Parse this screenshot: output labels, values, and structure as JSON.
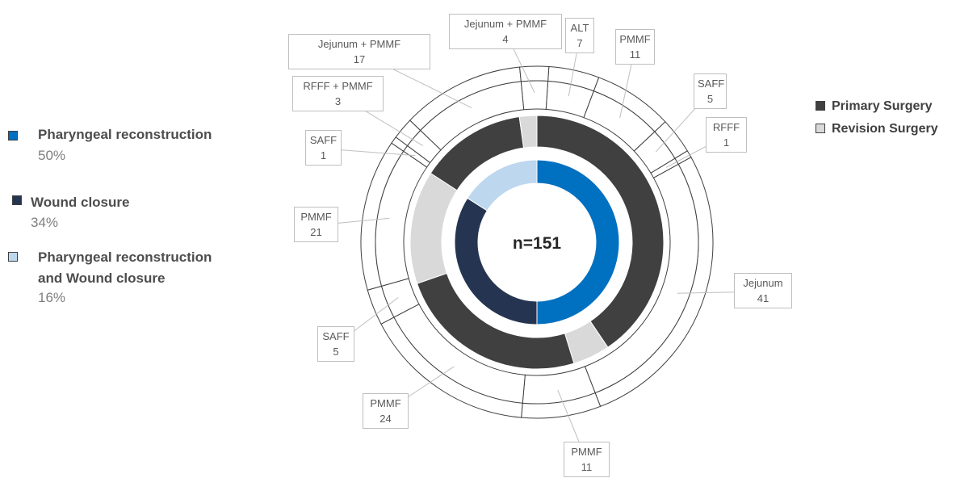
{
  "chart_data": {
    "type": "donut",
    "center_label": "n=151",
    "inner_ring": {
      "series": [
        {
          "name": "Pharyngeal reconstruction",
          "percent": 50,
          "color": "#0070c0"
        },
        {
          "name": "Wound closure",
          "percent": 34,
          "color": "#253551"
        },
        {
          "name": "Pharyngeal reconstruction and Wound closure",
          "percent": 16,
          "color": "#bdd7ee"
        }
      ]
    },
    "middle_ring": {
      "series": [
        {
          "name": "Primary Surgery",
          "color": "#404040"
        },
        {
          "name": "Revision Surgery",
          "color": "#d9d9d9"
        }
      ]
    },
    "outer_ring": {
      "segments": [
        {
          "label": "ALT",
          "value": 7
        },
        {
          "label": "PMMF",
          "value": 11
        },
        {
          "label": "SAFF",
          "value": 5
        },
        {
          "label": "RFFF",
          "value": 1
        },
        {
          "label": "Jejunum",
          "value": 41
        },
        {
          "label": "PMMF",
          "value": 11
        },
        {
          "label": "PMMF",
          "value": 24
        },
        {
          "label": "SAFF",
          "value": 5
        },
        {
          "label": "PMMF",
          "value": 21
        },
        {
          "label": "SAFF",
          "value": 1
        },
        {
          "label": "RFFF + PMMF",
          "value": 3
        },
        {
          "label": "Jejunum + PMMF",
          "value": 17
        },
        {
          "label": "Jejunum + PMMF",
          "value": 4
        }
      ]
    },
    "legend_left": [
      {
        "name": "Pharyngeal reconstruction",
        "pct": "50%",
        "color": "#0070c0"
      },
      {
        "name": "Wound closure",
        "pct": "34%",
        "color": "#253551"
      },
      {
        "name": "Pharyngeal reconstruction",
        "name2": "and Wound closure",
        "pct": "16%",
        "color": "#bdd7ee"
      }
    ],
    "legend_right": [
      {
        "name": "Primary Surgery",
        "color": "#404040"
      },
      {
        "name": "Revision Surgery",
        "color": "#d9d9d9"
      }
    ]
  }
}
